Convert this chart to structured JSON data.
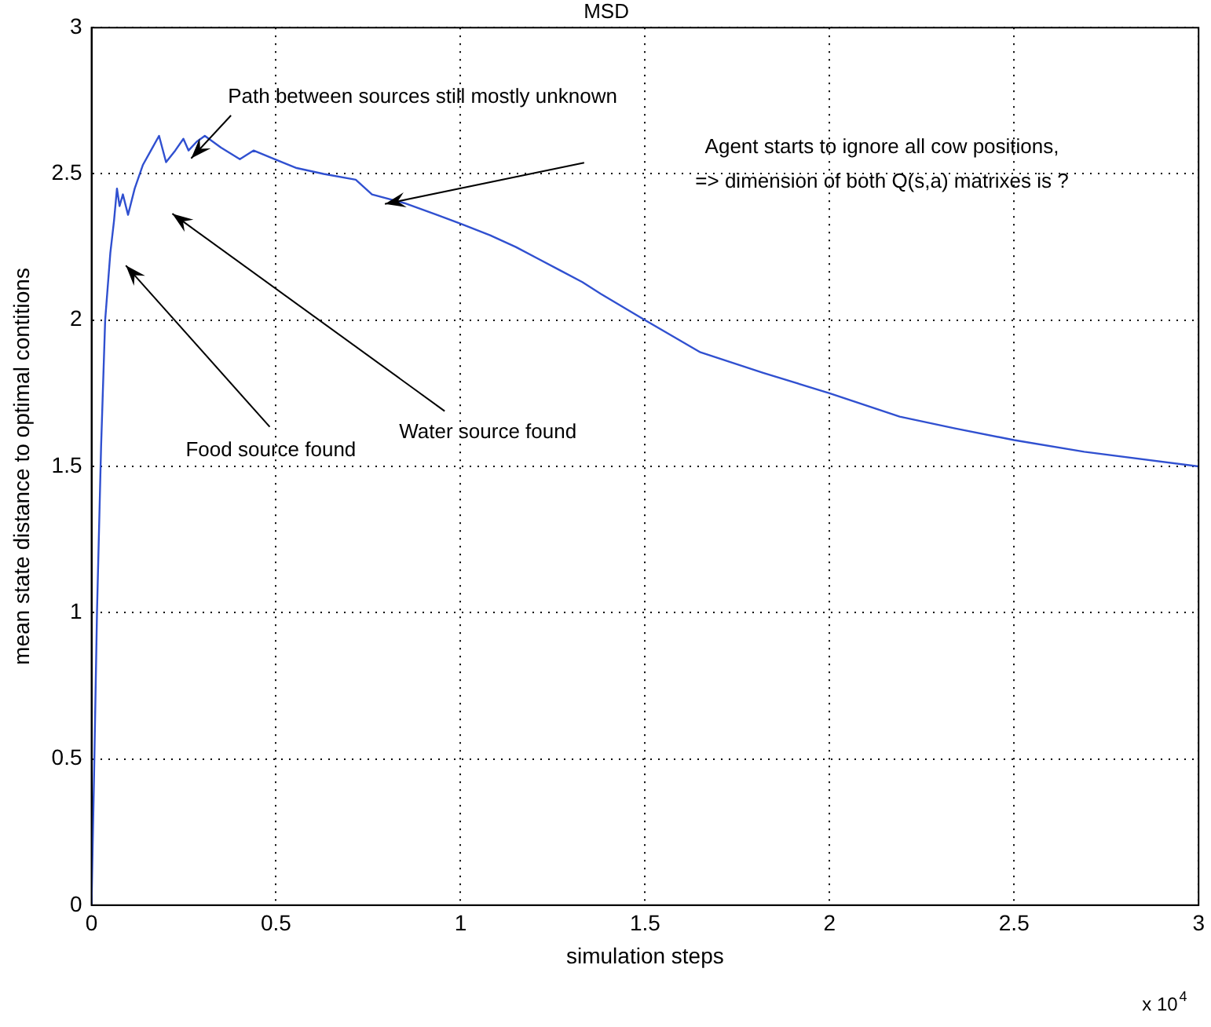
{
  "chart_data": {
    "type": "line",
    "title": "MSD",
    "xlabel": "simulation steps",
    "ylabel": "mean state distance to optimal contitions",
    "x": [
      0,
      0.007,
      0.015,
      0.026,
      0.037,
      0.051,
      0.061,
      0.069,
      0.076,
      0.085,
      0.099,
      0.117,
      0.139,
      0.161,
      0.183,
      0.202,
      0.227,
      0.249,
      0.263,
      0.285,
      0.307,
      0.351,
      0.402,
      0.439,
      0.497,
      0.556,
      0.629,
      0.716,
      0.76,
      0.848,
      0.936,
      1.0,
      1.08,
      1.15,
      1.21,
      1.27,
      1.33,
      1.38,
      1.5,
      1.65,
      1.82,
      2.0,
      2.19,
      2.34,
      2.5,
      2.69,
      3.0
    ],
    "series": [
      {
        "color": "#3050d0",
        "values": [
          0,
          0.45,
          1.01,
          1.57,
          2.0,
          2.23,
          2.34,
          2.45,
          2.39,
          2.43,
          2.36,
          2.45,
          2.53,
          2.58,
          2.63,
          2.54,
          2.58,
          2.62,
          2.58,
          2.61,
          2.63,
          2.59,
          2.55,
          2.58,
          2.55,
          2.52,
          2.5,
          2.48,
          2.43,
          2.4,
          2.36,
          2.33,
          2.29,
          2.25,
          2.21,
          2.17,
          2.13,
          2.09,
          2.0,
          1.89,
          1.82,
          1.75,
          1.67,
          1.63,
          1.59,
          1.55,
          1.5
        ]
      }
    ],
    "xlim": [
      0,
      3
    ],
    "xticks": [
      0,
      0.5,
      1,
      1.5,
      2,
      2.5,
      3
    ],
    "ylim": [
      0,
      3
    ],
    "yticks": [
      0,
      0.5,
      1,
      1.5,
      2,
      2.5,
      3
    ],
    "grid": true,
    "legend": false,
    "marker": "none",
    "line_style": "solid",
    "annotations": [
      "Food source found",
      "Water source found",
      "Path between sources still mostly unknown",
      "Agent starts to ignore all cow positions,\n=> dimension of both Q(s,a) matrixes is ?",
      "x 10$^{4}$"
    ]
  }
}
